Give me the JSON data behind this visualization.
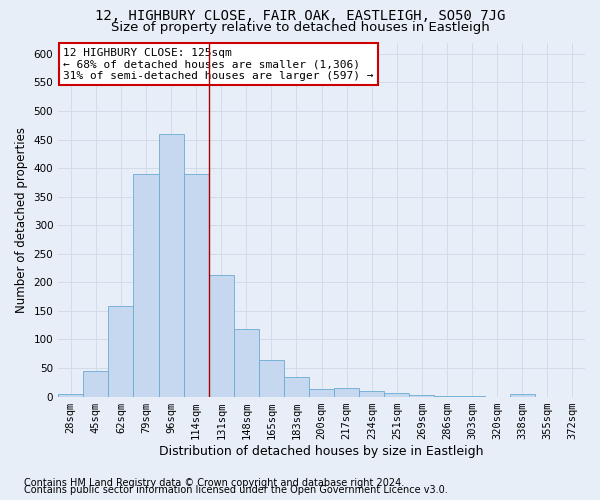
{
  "title1": "12, HIGHBURY CLOSE, FAIR OAK, EASTLEIGH, SO50 7JG",
  "title2": "Size of property relative to detached houses in Eastleigh",
  "xlabel": "Distribution of detached houses by size in Eastleigh",
  "ylabel": "Number of detached properties",
  "footnote1": "Contains HM Land Registry data © Crown copyright and database right 2024.",
  "footnote2": "Contains public sector information licensed under the Open Government Licence v3.0.",
  "bar_labels": [
    "28sqm",
    "45sqm",
    "62sqm",
    "79sqm",
    "96sqm",
    "114sqm",
    "131sqm",
    "148sqm",
    "165sqm",
    "183sqm",
    "200sqm",
    "217sqm",
    "234sqm",
    "251sqm",
    "269sqm",
    "286sqm",
    "303sqm",
    "320sqm",
    "338sqm",
    "355sqm",
    "372sqm"
  ],
  "bar_values": [
    5,
    44,
    158,
    390,
    460,
    390,
    213,
    118,
    64,
    35,
    14,
    15,
    10,
    6,
    2,
    1,
    1,
    0,
    5,
    0,
    0
  ],
  "bar_color": "#c5d8f0",
  "bar_edge_color": "#6aaad4",
  "ylim": [
    0,
    620
  ],
  "yticks": [
    0,
    50,
    100,
    150,
    200,
    250,
    300,
    350,
    400,
    450,
    500,
    550,
    600
  ],
  "vline_x": 5.5,
  "vline_color": "#aa0000",
  "annotation_title": "12 HIGHBURY CLOSE: 125sqm",
  "annotation_line1": "← 68% of detached houses are smaller (1,306)",
  "annotation_line2": "31% of semi-detached houses are larger (597) →",
  "annotation_box_facecolor": "#ffffff",
  "annotation_box_edgecolor": "#cc0000",
  "background_color": "#e8eef8",
  "grid_color": "#d0d8e8",
  "title1_fontsize": 10,
  "title2_fontsize": 9.5,
  "ylabel_fontsize": 8.5,
  "xlabel_fontsize": 9,
  "tick_fontsize": 7.5,
  "annot_fontsize": 8,
  "footnote_fontsize": 7
}
